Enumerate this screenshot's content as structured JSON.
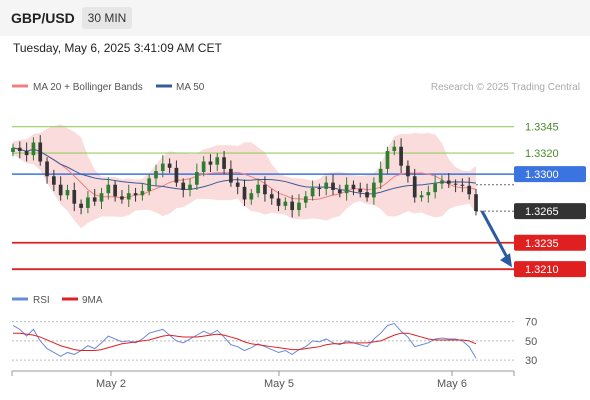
{
  "header": {
    "symbol": "GBP/USD",
    "timeframe": "30 MIN"
  },
  "timestamp": "Tuesday, May 6, 2025 3:41:09 AM CET",
  "colors": {
    "bollinger_band": "#f8d0d0",
    "ma20": "#f08080",
    "ma50": "#3a5a9a",
    "candle_up": "#2e7d32",
    "candle_down": "#333333",
    "resistance": "#99cc66",
    "pivot": "#3b73e0",
    "support": "#e02020",
    "arrow": "#2a5aa0",
    "rsi": "#6a8ad8",
    "rsi_ma": "#e02020"
  },
  "chart_data": [
    {
      "type": "line",
      "title": "",
      "legend": [
        {
          "name": "MA 20 + Bollinger Bands",
          "color": "#f08080"
        },
        {
          "name": "MA 50",
          "color": "#3a5a9a"
        }
      ],
      "watermark": "Research © 2025 Trading Central",
      "ylim": [
        1.3195,
        1.3375
      ],
      "levels": [
        {
          "value": "1.3345",
          "kind": "resistance"
        },
        {
          "value": "1.3320",
          "kind": "resistance"
        },
        {
          "value": "1.3300",
          "kind": "pivot"
        },
        {
          "value": "1.3265",
          "kind": "current"
        },
        {
          "value": "1.3235",
          "kind": "support"
        },
        {
          "value": "1.3210",
          "kind": "support"
        }
      ],
      "x_ticks": [
        "May 2",
        "May 5",
        "May 6"
      ],
      "series": [
        {
          "values": [
            1.3325,
            1.3322,
            1.3318,
            1.333,
            1.3312,
            1.3298,
            1.329,
            1.328,
            1.3285,
            1.3272,
            1.3268,
            1.3278,
            1.3274,
            1.3282,
            1.329,
            1.3279,
            1.3276,
            1.3282,
            1.328,
            1.3284,
            1.3296,
            1.3303,
            1.331,
            1.3306,
            1.3292,
            1.3285,
            1.329,
            1.3302,
            1.3312,
            1.3309,
            1.3316,
            1.3305,
            1.3292,
            1.3288,
            1.3276,
            1.3282,
            1.329,
            1.3281,
            1.3277,
            1.327,
            1.3274,
            1.3266,
            1.3273,
            1.3279,
            1.3287,
            1.3286,
            1.3292,
            1.3285,
            1.3282,
            1.329,
            1.3286,
            1.3283,
            1.3278,
            1.3292,
            1.3305,
            1.3322,
            1.3326,
            1.3308,
            1.3298,
            1.3278,
            1.328,
            1.3283,
            1.3291,
            1.3294,
            1.3291,
            1.329,
            1.3289,
            1.3281,
            1.3265
          ]
        }
      ]
    },
    {
      "type": "line",
      "title": "",
      "legend": [
        {
          "name": "RSI",
          "color": "#6a8ad8"
        },
        {
          "name": "9MA",
          "color": "#e02020"
        }
      ],
      "ylim": [
        25,
        80
      ],
      "y_ticks": [
        "70",
        "50",
        "30"
      ],
      "series": [
        {
          "name": "RSI",
          "values": [
            66,
            62,
            55,
            62,
            50,
            42,
            38,
            34,
            38,
            36,
            40,
            45,
            42,
            48,
            55,
            52,
            49,
            50,
            48,
            52,
            58,
            60,
            62,
            56,
            50,
            48,
            52,
            56,
            60,
            57,
            61,
            54,
            46,
            44,
            40,
            43,
            47,
            44,
            41,
            38,
            40,
            36,
            41,
            44,
            50,
            49,
            52,
            48,
            46,
            50,
            48,
            46,
            44,
            52,
            58,
            66,
            68,
            60,
            54,
            44,
            46,
            48,
            52,
            53,
            52,
            52,
            50,
            44,
            32
          ]
        },
        {
          "name": "9MA",
          "values": [
            58,
            58,
            57,
            56,
            54,
            51,
            48,
            45,
            43,
            41,
            40,
            40,
            40,
            41,
            43,
            45,
            47,
            48,
            49,
            50,
            51,
            53,
            55,
            56,
            55,
            54,
            54,
            54,
            55,
            56,
            57,
            56,
            54,
            52,
            49,
            47,
            46,
            45,
            44,
            43,
            42,
            41,
            41,
            42,
            43,
            44,
            46,
            47,
            47,
            48,
            48,
            48,
            48,
            49,
            50,
            53,
            56,
            58,
            58,
            56,
            54,
            52,
            51,
            51,
            51,
            51,
            51,
            50,
            47
          ]
        }
      ]
    }
  ]
}
